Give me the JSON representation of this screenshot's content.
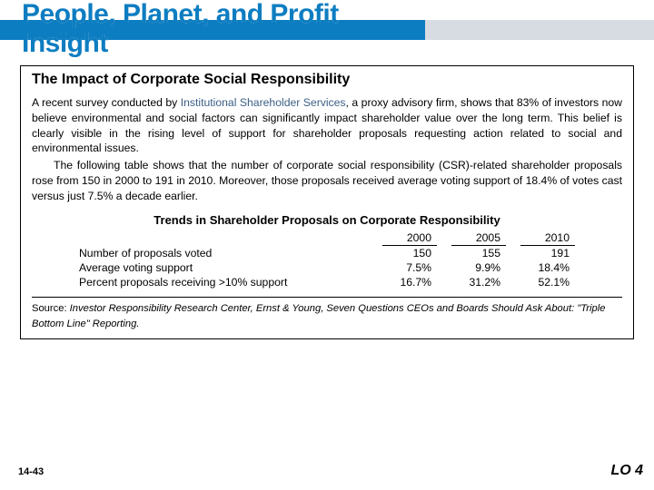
{
  "header": {
    "title_line1": "People, Planet, and Profit",
    "title_line2": "Insight",
    "blue_bar_color": "#0d7dc1",
    "gray_bar_color": "#d6dce2"
  },
  "content": {
    "heading": "The Impact of Corporate Social Responsibility",
    "para1_prefix": "A recent survey conducted by ",
    "para1_link": "Institutional Shareholder Services",
    "para1_suffix": ", a proxy advisory firm, shows that 83% of investors now believe environmental and social factors can significantly impact shareholder value over the long term. This belief is clearly visible in the rising level of support for shareholder proposals requesting action related to social and environmental issues.",
    "para2": "The following table shows that the number of corporate social responsibility (CSR)-related shareholder proposals rose from 150 in 2000 to 191 in 2010. Moreover, those proposals received average voting support of 18.4% of votes cast versus just 7.5% a decade earlier.",
    "table": {
      "title": "Trends in Shareholder Proposals on Corporate Responsibility",
      "columns": [
        "2000",
        "2005",
        "2010"
      ],
      "rows": [
        {
          "label": "Number of proposals voted",
          "values": [
            "150",
            "155",
            "191"
          ]
        },
        {
          "label": "Average voting support",
          "values": [
            "7.5%",
            "9.9%",
            "18.4%"
          ]
        },
        {
          "label": "Percent proposals receiving >10% support",
          "values": [
            "16.7%",
            "31.2%",
            "52.1%"
          ]
        }
      ]
    },
    "source_label": "Source:",
    "source_text_pre": " Investor Responsibility Research Center, Ernst & Young, ",
    "source_em": "Seven Questions CEOs and Boards Should Ask About: \"Triple Bottom Line\" Reporting",
    "source_text_post": "."
  },
  "footer": {
    "left": "14-43",
    "right": "LO 4"
  }
}
